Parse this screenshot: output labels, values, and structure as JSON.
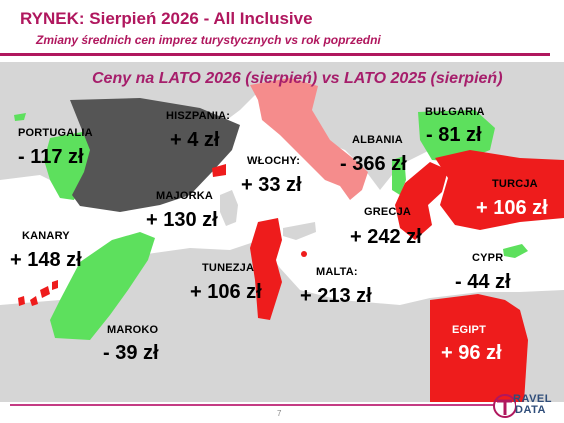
{
  "header": {
    "title": "RYNEK: Sierpień 2026 - All Inclusive",
    "subtitle": "Zmiany średnich cen imprez turystycznych vs rok poprzedni"
  },
  "map_title": "Ceny na LATO 2026 (sierpień) vs  LATO 2025 (sierpień)",
  "colors": {
    "accent": "#b0175e",
    "increase": "#ee1c1c",
    "decrease": "#5de05d",
    "small_increase": "#555555",
    "land": "#d6d6d6",
    "sea": "#ffffff"
  },
  "destinations": {
    "portugalia": {
      "name": "PORTUGALIA",
      "change": "- 117 zł"
    },
    "hiszpania": {
      "name": "HISZPANIA:",
      "change": "+ 4 zł"
    },
    "wlochy": {
      "name": "WŁOCHY:",
      "change": "+ 33 zł"
    },
    "albania": {
      "name": "ALBANIA",
      "change": "- 366 zł"
    },
    "bulgaria": {
      "name": "BUŁGARIA",
      "change": "- 81 zł"
    },
    "turcja": {
      "name": "TURCJA",
      "change": "+ 106 zł"
    },
    "majorka": {
      "name": "MAJORKA",
      "change": "+ 130 zł"
    },
    "grecja": {
      "name": "GRECJA",
      "change": "+ 242 zł"
    },
    "kanary": {
      "name": "KANARY",
      "change": "+ 148 zł"
    },
    "tunezja": {
      "name": "TUNEZJA",
      "change": "+ 106 zł"
    },
    "malta": {
      "name": "MALTA:",
      "change": "+ 213 zł"
    },
    "cypr": {
      "name": "CYPR",
      "change": "- 44 zł"
    },
    "maroko": {
      "name": "MAROKO",
      "change": "- 39 zł"
    },
    "egipt": {
      "name": "EGIPT",
      "change": "+ 96 zł"
    }
  },
  "footer": {
    "page": "7",
    "logo_line1": "RAVEL",
    "logo_line2": "DATA"
  }
}
